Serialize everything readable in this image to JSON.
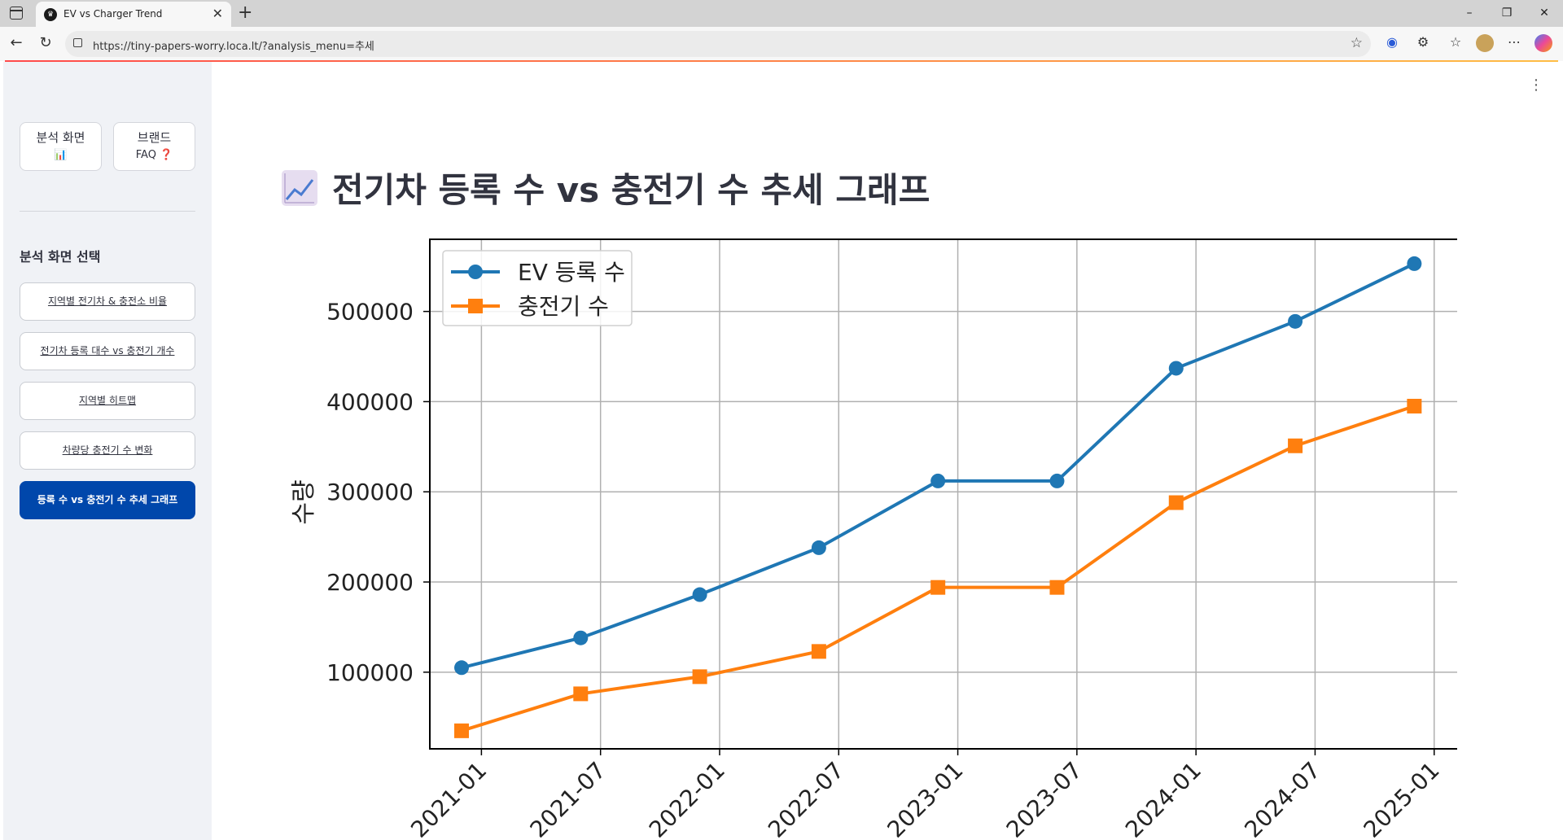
{
  "browser": {
    "tab_title": "EV vs Charger Trend",
    "url": "https://tiny-papers-worry.loca.lt/?analysis_menu=추세",
    "new_tab_label": "+",
    "window_controls": [
      "–",
      "❐",
      "✕"
    ]
  },
  "sidebar": {
    "top_buttons": [
      {
        "line1": "분석 화면",
        "line2": "📊"
      },
      {
        "line1": "브랜드",
        "line2": "FAQ ❓"
      }
    ],
    "heading": "분석 화면 선택",
    "menu_items": [
      {
        "label": "지역별 전기차 & 충전소 비율",
        "active": false
      },
      {
        "label": "전기차 등록 대수 vs 충전기 개수",
        "active": false
      },
      {
        "label": "지역별 히트맵",
        "active": false
      },
      {
        "label": "차량당 충전기 수 변화",
        "active": false
      },
      {
        "label": "등록 수 vs 충전기 수 추세 그래프",
        "active": true
      }
    ]
  },
  "main": {
    "title": "전기차 등록 수 vs 충전기 수 추세 그래프",
    "title_icon": "chart-increasing-icon"
  },
  "colors": {
    "accent": "#0047ab",
    "series_ev": "#1f77b4",
    "series_charger": "#ff7f0e",
    "sidebar_bg": "#f0f2f6"
  },
  "chart_data": {
    "type": "line",
    "title": "",
    "xlabel": "",
    "ylabel": "수량",
    "x": [
      "2020-12",
      "2021-06",
      "2021-12",
      "2022-06",
      "2022-12",
      "2023-06",
      "2023-12",
      "2024-06",
      "2024-12"
    ],
    "x_ticks": [
      "2021-01",
      "2021-07",
      "2022-01",
      "2022-07",
      "2023-01",
      "2023-07",
      "2024-01",
      "2024-07",
      "2025-01"
    ],
    "y_ticks": [
      100000,
      200000,
      300000,
      400000,
      500000
    ],
    "ylim": [
      15000,
      580000
    ],
    "grid": true,
    "legend": "top-left",
    "series": [
      {
        "name": "EV 등록 수",
        "marker": "circle",
        "values": [
          105000,
          138000,
          186000,
          238000,
          312000,
          312000,
          437000,
          489000,
          553000
        ]
      },
      {
        "name": "충전기 수",
        "marker": "square",
        "values": [
          35000,
          76000,
          95000,
          123000,
          194000,
          194000,
          288000,
          351000,
          395000
        ]
      }
    ]
  }
}
